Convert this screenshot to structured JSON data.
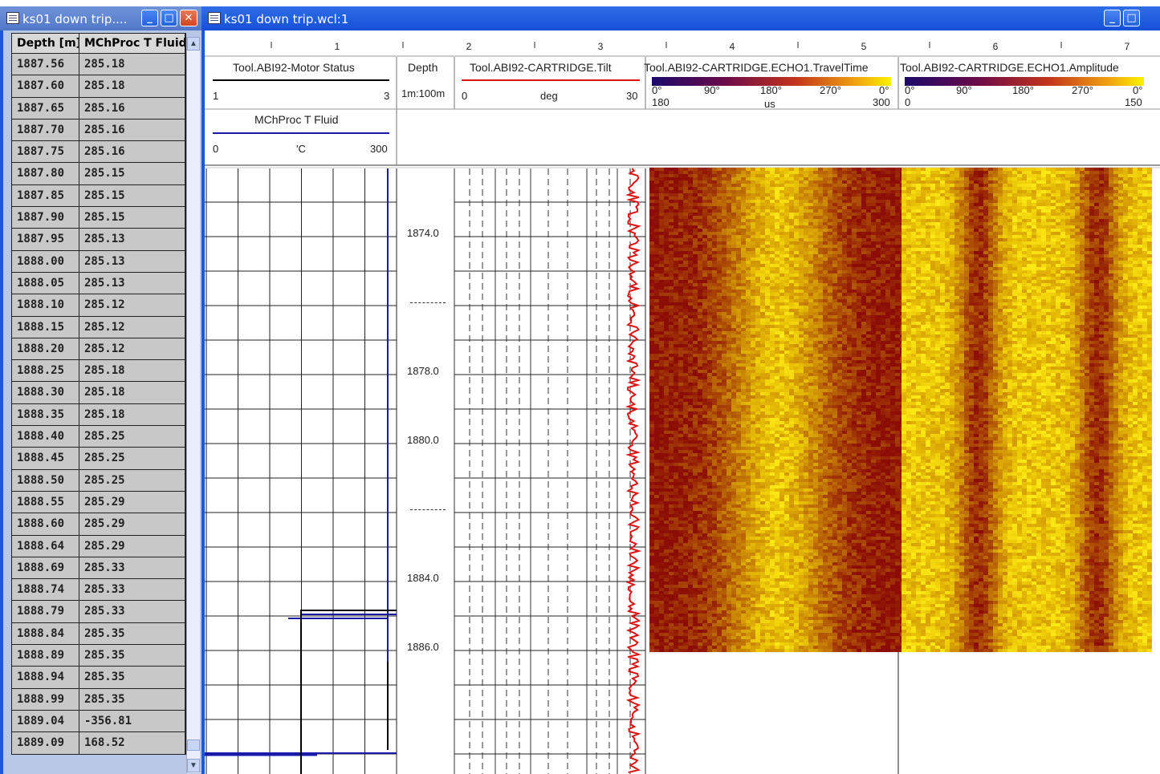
{
  "left_window": {
    "title": "ks01 down trip....",
    "buttons": {
      "minimize": "_",
      "maximize": "□",
      "close": "✕"
    },
    "columns": [
      "Depth [m]",
      "MChProc T Fluid"
    ],
    "rows": [
      [
        "1887.56",
        "285.18"
      ],
      [
        "1887.60",
        "285.18"
      ],
      [
        "1887.65",
        "285.16"
      ],
      [
        "1887.70",
        "285.16"
      ],
      [
        "1887.75",
        "285.16"
      ],
      [
        "1887.80",
        "285.15"
      ],
      [
        "1887.85",
        "285.15"
      ],
      [
        "1887.90",
        "285.15"
      ],
      [
        "1887.95",
        "285.13"
      ],
      [
        "1888.00",
        "285.13"
      ],
      [
        "1888.05",
        "285.13"
      ],
      [
        "1888.10",
        "285.12"
      ],
      [
        "1888.15",
        "285.12"
      ],
      [
        "1888.20",
        "285.12"
      ],
      [
        "1888.25",
        "285.18"
      ],
      [
        "1888.30",
        "285.18"
      ],
      [
        "1888.35",
        "285.18"
      ],
      [
        "1888.40",
        "285.25"
      ],
      [
        "1888.45",
        "285.25"
      ],
      [
        "1888.50",
        "285.25"
      ],
      [
        "1888.55",
        "285.29"
      ],
      [
        "1888.60",
        "285.29"
      ],
      [
        "1888.64",
        "285.29"
      ],
      [
        "1888.69",
        "285.33"
      ],
      [
        "1888.74",
        "285.33"
      ],
      [
        "1888.79",
        "285.33"
      ],
      [
        "1888.84",
        "285.35"
      ],
      [
        "1888.89",
        "285.35"
      ],
      [
        "1888.94",
        "285.35"
      ],
      [
        "1888.99",
        "285.35"
      ],
      [
        "1889.04",
        "-356.81"
      ],
      [
        "1889.09",
        "168.52"
      ]
    ]
  },
  "log_window": {
    "title": "ks01 down trip.wcl:1",
    "ruler_numbers": [
      "1",
      "2",
      "3",
      "4",
      "5",
      "6",
      "7"
    ],
    "tracks": {
      "motor_status": {
        "name": "Tool.ABI92-Motor Status",
        "min": "1",
        "max": "3"
      },
      "fluid_temp": {
        "name": "MChProc T Fluid",
        "min": "0",
        "unit": "'C",
        "max": "300"
      },
      "depth": {
        "name": "Depth",
        "scale": "1m:100m",
        "labels": [
          "1874.0",
          "1878.0",
          "1880.0",
          "1884.0",
          "1886.0"
        ]
      },
      "tilt": {
        "name": "Tool.ABI92-CARTRIDGE.Tilt",
        "min": "0",
        "unit": "deg",
        "max": "30"
      },
      "travel_time": {
        "name": "Tool.ABI92-CARTRIDGE.ECHO1.TravelTime",
        "angles": [
          "0°",
          "90°",
          "180°",
          "270°",
          "0°"
        ],
        "min": "180",
        "unit": "us",
        "max": "300"
      },
      "amplitude": {
        "name": "Tool.ABI92-CARTRIDGE.ECHO1.Amplitude",
        "angles": [
          "0°",
          "90°",
          "180°",
          "270°",
          "0°"
        ],
        "min": "0",
        "max": "150"
      }
    }
  },
  "colors": {
    "title_blue": "#1f57d6",
    "motor_line": "#000000",
    "temp_line": "#1a1aa8",
    "tilt_line": "#dd1111",
    "image_dark": "#8a0c06",
    "image_bright": "#f5e800"
  }
}
